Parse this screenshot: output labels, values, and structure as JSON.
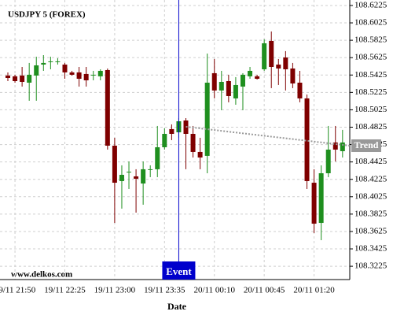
{
  "chart_data": {
    "type": "candlestick",
    "title": "USDJPY 5 (FOREX)",
    "x_label": "Date",
    "watermark": "www.delkos.com",
    "up_color": "#1f8f1f",
    "down_color": "#7f0000",
    "grid": true,
    "categories": [
      null,
      "19/11 21:50",
      null,
      null,
      null,
      null,
      null,
      null,
      "19/11 22:25",
      null,
      null,
      null,
      null,
      null,
      null,
      "19/11 23:00",
      null,
      null,
      null,
      null,
      null,
      null,
      "19/11 23:35",
      null,
      null,
      null,
      null,
      null,
      null,
      "20/11 00:10",
      null,
      null,
      null,
      null,
      null,
      null,
      "20/11 00:45",
      null,
      null,
      null,
      null,
      null,
      null,
      "20/11 01:20",
      null,
      null,
      null,
      null
    ],
    "open": [
      108.5419,
      108.541,
      108.5419,
      108.5337,
      108.5419,
      108.5545,
      108.5573,
      108.5573,
      108.5545,
      108.5455,
      108.5455,
      108.5437,
      108.5419,
      108.541,
      108.5482,
      108.4612,
      108.4205,
      108.4304,
      108.4259,
      108.4177,
      108.4332,
      108.4341,
      108.4594,
      108.4803,
      108.4766,
      108.4902,
      108.4748,
      108.454,
      108.4495,
      108.5446,
      108.5247,
      108.5355,
      108.5156,
      108.5292,
      108.541,
      108.541,
      108.5491,
      108.5817,
      108.5545,
      108.5627,
      108.55,
      108.5337,
      108.5156,
      108.4186,
      108.3724,
      108.4295,
      108.4649,
      108.4549
    ],
    "high": [
      108.5455,
      108.5428,
      108.5518,
      108.5564,
      108.5636,
      108.5654,
      108.5636,
      108.5618,
      108.5564,
      108.5473,
      108.5518,
      108.5518,
      108.5473,
      108.5491,
      108.55,
      108.4703,
      108.4386,
      108.4431,
      108.4341,
      108.4431,
      108.4386,
      108.4839,
      108.4812,
      108.4857,
      108.4929,
      108.4929,
      108.4839,
      108.4703,
      108.5672,
      108.5609,
      108.5473,
      108.5428,
      108.5401,
      108.5446,
      108.5518,
      108.5428,
      108.5835,
      108.5926,
      108.5609,
      108.57,
      108.5564,
      108.5473,
      108.5201,
      108.4341,
      108.4386,
      108.4839,
      108.4839,
      108.4794
    ],
    "low": [
      108.5355,
      108.5337,
      108.5292,
      108.5129,
      108.5129,
      108.5473,
      108.5491,
      108.5545,
      108.5382,
      108.5419,
      108.5292,
      108.5292,
      108.5364,
      108.5364,
      108.4567,
      108.3724,
      108.3888,
      108.4114,
      108.3842,
      108.3933,
      108.425,
      108.425,
      108.4567,
      108.4676,
      108.4703,
      108.4341,
      108.4476,
      108.4341,
      108.4295,
      108.5156,
      108.502,
      108.5111,
      108.5083,
      108.502,
      108.5382,
      108.5373,
      108.5473,
      108.5274,
      108.531,
      108.5247,
      108.5274,
      108.5111,
      108.4114,
      108.3607,
      108.3525,
      108.425,
      108.4431,
      108.4476
    ],
    "close": [
      108.5391,
      108.5355,
      108.5346,
      108.5428,
      108.5536,
      108.5564,
      108.5582,
      108.5582,
      108.5455,
      108.5428,
      108.5382,
      108.5364,
      108.5428,
      108.5473,
      108.4612,
      108.4186,
      108.4277,
      108.4313,
      108.4232,
      108.4341,
      108.4341,
      108.4594,
      108.4748,
      108.4748,
      108.4893,
      108.4748,
      108.454,
      108.4476,
      108.5337,
      108.5247,
      108.5346,
      108.5183,
      108.531,
      108.5428,
      108.5473,
      108.5382,
      108.579,
      108.5518,
      108.55,
      108.5491,
      108.5328,
      108.5156,
      108.4205,
      108.3715,
      108.4295,
      108.4567,
      108.4567,
      108.4649
    ],
    "ylim": [
      108.3072,
      108.6288
    ],
    "yticks": [
      108.3225,
      108.3425,
      108.3625,
      108.3825,
      108.4025,
      108.4225,
      108.4425,
      108.4625,
      108.4825,
      108.5025,
      108.5225,
      108.5425,
      108.5625,
      108.5825,
      108.6025,
      108.6225
    ],
    "trend": {
      "label": "Trend",
      "color": "#999999",
      "x": [
        25,
        48
      ],
      "values": [
        108.483,
        108.4612
      ]
    },
    "event": {
      "label": "Event",
      "color": "#0000cc",
      "x": 24
    }
  }
}
